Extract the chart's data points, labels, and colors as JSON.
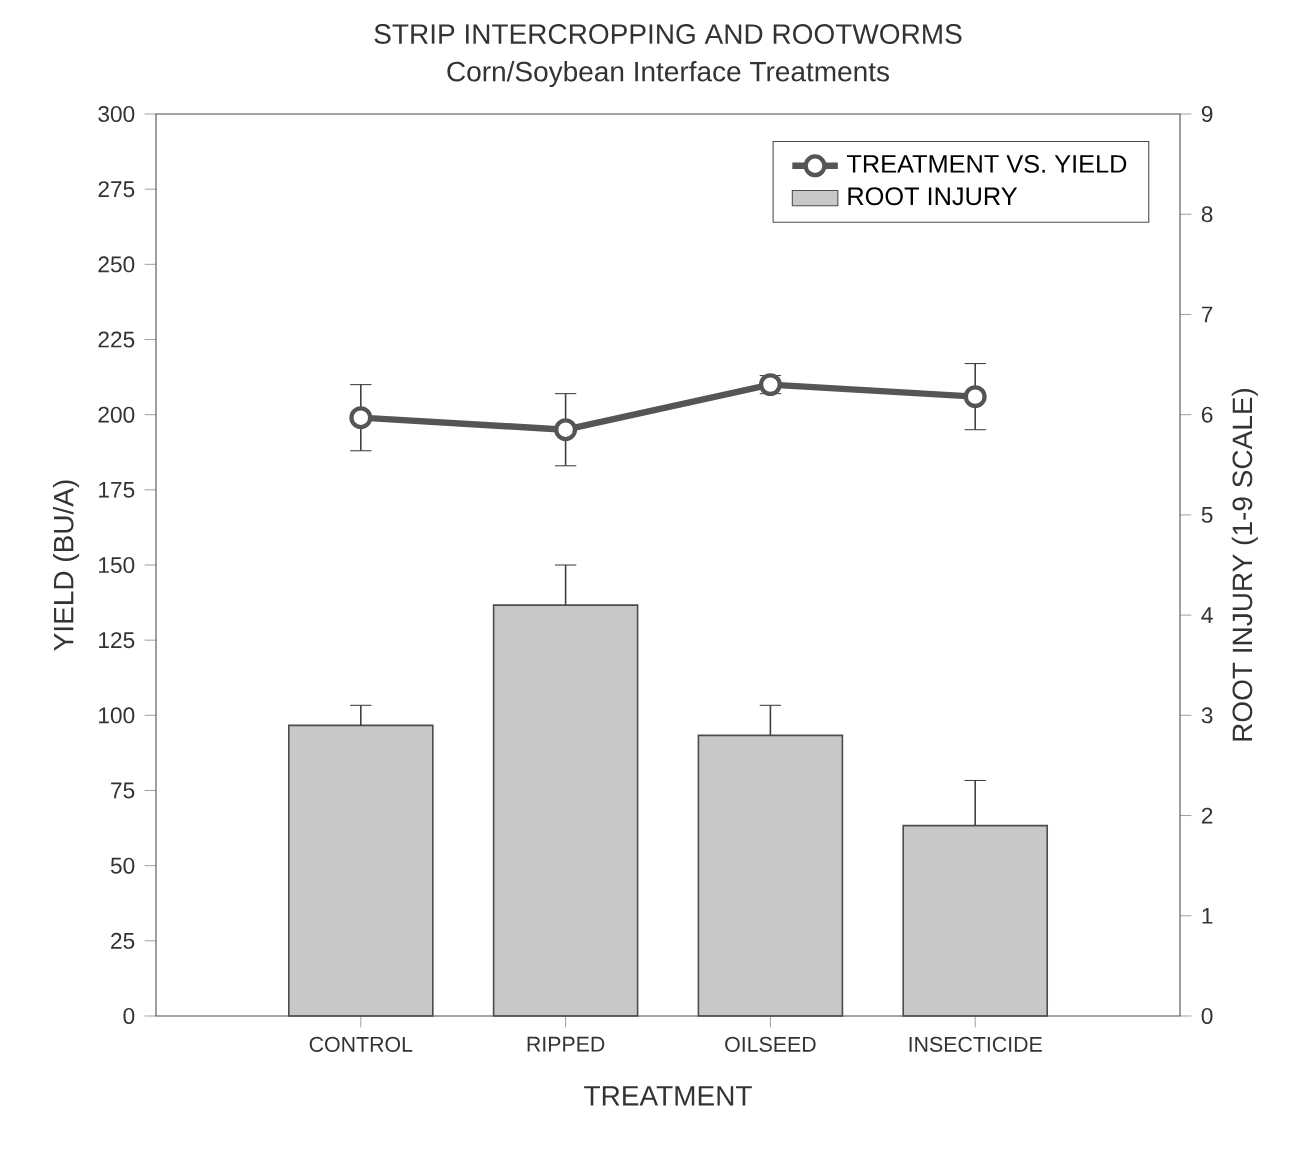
{
  "chart_data": {
    "type": "bar",
    "title": "STRIP INTERCROPPING AND ROOTWORMS",
    "subtitle": "Corn/Soybean Interface Treatments",
    "xlabel": "TREATMENT",
    "ylabel": "YIELD (BU/A)",
    "y2label": "ROOT INJURY (1-9 SCALE)",
    "categories": [
      "CONTROL",
      "RIPPED",
      "OILSEED",
      "INSECTICIDE"
    ],
    "series": [
      {
        "name": "TREATMENT VS. YIELD",
        "type": "line",
        "marker": "circle",
        "color": "#555555",
        "values": [
          199,
          195,
          210,
          206
        ],
        "errors": [
          11,
          12,
          3,
          11
        ]
      },
      {
        "name": "ROOT INJURY",
        "axis": "y2",
        "color": "#c8c8c8",
        "values": [
          2.9,
          4.1,
          2.8,
          1.9
        ],
        "errors": [
          [
            2.9,
            3.1
          ],
          [
            4.1,
            4.5
          ],
          [
            2.8,
            3.1
          ],
          [
            1.9,
            2.35
          ]
        ]
      }
    ],
    "ylim": [
      0,
      300
    ],
    "yticks": [
      0,
      25,
      50,
      75,
      100,
      125,
      150,
      175,
      200,
      225,
      250,
      275,
      300
    ],
    "y2lim": [
      0,
      9
    ],
    "y2ticks": [
      0,
      1,
      2,
      3,
      4,
      5,
      6,
      7,
      8,
      9
    ],
    "legend": "top right"
  }
}
